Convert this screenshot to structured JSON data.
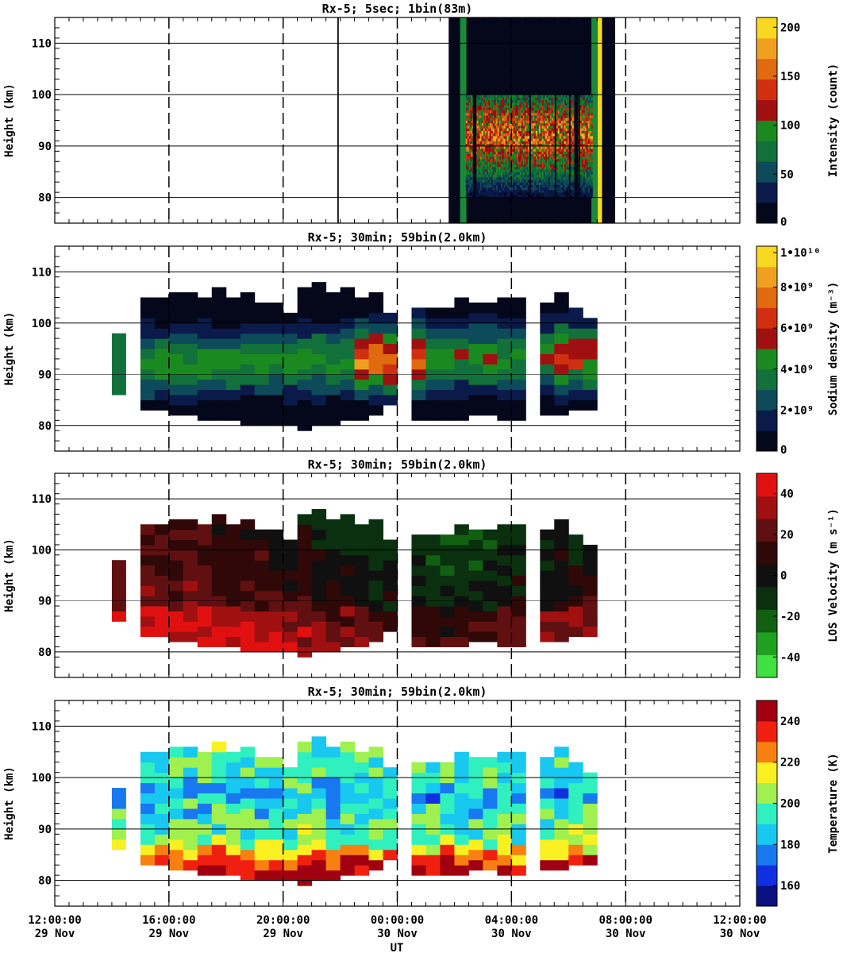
{
  "colors": {
    "intensity": [
      "#05071a",
      "#0a1a4a",
      "#0d4a5a",
      "#12703a",
      "#1a8a20",
      "#a01010",
      "#d03010",
      "#e06a10",
      "#f0a020",
      "#f8d820"
    ],
    "density": [
      "#05071a",
      "#0a1a4a",
      "#0d4a5a",
      "#12703a",
      "#1a8a20",
      "#a01010",
      "#d03010",
      "#e06a10",
      "#f0a020",
      "#f8d820"
    ],
    "velocity": [
      "#40e040",
      "#20a020",
      "#106010",
      "#0a3010",
      "#101010",
      "#300808",
      "#601010",
      "#a01010",
      "#e01010"
    ],
    "temperature": [
      "#0a1080",
      "#1030e0",
      "#1878f0",
      "#18c8f0",
      "#30f0c0",
      "#a0f050",
      "#f8f020",
      "#f88010",
      "#f02010",
      "#a00010"
    ]
  },
  "chart_data": [
    {
      "type": "heatmap",
      "title": "Rx-5;  5sec; 1bin(83m)",
      "ylabel": "Height (km)",
      "ylim": [
        75,
        115
      ],
      "yticks": [
        "110",
        "100",
        "90",
        "80"
      ],
      "colorbar_label": "Intensity (count)",
      "colorbar_ticks": [
        "200",
        "150",
        "100",
        "50",
        "0"
      ],
      "colorbar_range": [
        0,
        210
      ],
      "coverage_ut_hours": [
        13.8,
        19.5
      ],
      "coverage_note": "layer 85-100 km"
    },
    {
      "type": "heatmap",
      "title": "Rx-5; 30min; 59bin(2.0km)",
      "ylabel": "Height (km)",
      "ylim": [
        75,
        115
      ],
      "yticks": [
        "110",
        "100",
        "90",
        "80"
      ],
      "colorbar_label": "Sodium density (m⁻³)",
      "colorbar_ticks": [
        "1•10¹⁰",
        "8•10⁹",
        "6•10⁹",
        "4•10⁹",
        "2•10⁹",
        "0"
      ],
      "colorbar_range": [
        0,
        10000000000.0
      ]
    },
    {
      "type": "heatmap",
      "title": "Rx-5; 30min; 59bin(2.0km)",
      "ylabel": "Height (km)",
      "ylim": [
        75,
        115
      ],
      "yticks": [
        "110",
        "100",
        "90",
        "80"
      ],
      "colorbar_label": "LOS Velocity (m s⁻¹)",
      "colorbar_ticks": [
        "40",
        "20",
        "0",
        "-20",
        "-40"
      ],
      "colorbar_range": [
        -50,
        50
      ]
    },
    {
      "type": "heatmap",
      "title": "Rx-5; 30min; 59bin(2.0km)",
      "ylabel": "Height (km)",
      "ylim": [
        75,
        115
      ],
      "yticks": [
        "110",
        "100",
        "90",
        "80"
      ],
      "colorbar_label": "Temperature (K)",
      "colorbar_ticks": [
        "240",
        "220",
        "200",
        "180",
        "160"
      ],
      "colorbar_range": [
        150,
        250
      ]
    }
  ],
  "xaxis": {
    "label": "UT",
    "ticks": [
      {
        "time": "12:00:00",
        "date": "29 Nov"
      },
      {
        "time": "16:00:00",
        "date": "29 Nov"
      },
      {
        "time": "20:00:00",
        "date": "29 Nov"
      },
      {
        "time": "00:00:00",
        "date": "30 Nov"
      },
      {
        "time": "04:00:00",
        "date": "30 Nov"
      },
      {
        "time": "08:00:00",
        "date": "30 Nov"
      },
      {
        "time": "12:00:00",
        "date": "30 Nov"
      }
    ],
    "range_hours": [
      0,
      24
    ]
  },
  "profiles": {
    "columns_start_hour": 3.0,
    "column_width_hours": 0.5,
    "top_km": [
      105,
      105,
      105,
      105,
      105,
      106,
      105,
      105,
      104,
      104,
      102,
      106,
      107,
      106,
      106,
      105,
      105,
      102,
      null,
      102,
      102,
      103,
      104,
      104,
      104,
      105,
      104,
      null,
      103,
      105,
      103,
      101
    ],
    "bottom_km": [
      83,
      83,
      82,
      82,
      81,
      81,
      81,
      80,
      80,
      80,
      80,
      79,
      80,
      80,
      81,
      81,
      82,
      84,
      null,
      81,
      81,
      81,
      81,
      82,
      82,
      81,
      81,
      null,
      82,
      82,
      83,
      83
    ],
    "isolated_column": {
      "hour": 2.0,
      "top_km": 97,
      "bottom_km": 86
    }
  }
}
